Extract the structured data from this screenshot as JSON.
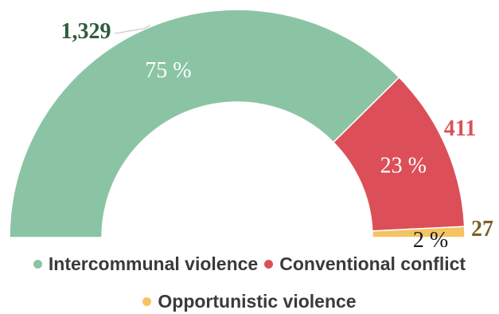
{
  "chart_data": {
    "type": "pie",
    "variant": "semi-donut",
    "series": [
      {
        "name": "Intercommunal violence",
        "value": 1329,
        "value_label": "1,329",
        "percent_label": "75 %",
        "color": "#8bc4a4",
        "label_color": "#2f5b40"
      },
      {
        "name": "Conventional conflict",
        "value": 411,
        "value_label": "411",
        "percent_label": "23 %",
        "color": "#dc4f58",
        "label_color": "#dc4f58"
      },
      {
        "name": "Opportunistic violence",
        "value": 27,
        "value_label": "27",
        "percent_label": "2 %",
        "color": "#f3c462",
        "label_color": "#7a6128"
      }
    ],
    "legend_position": "bottom"
  }
}
